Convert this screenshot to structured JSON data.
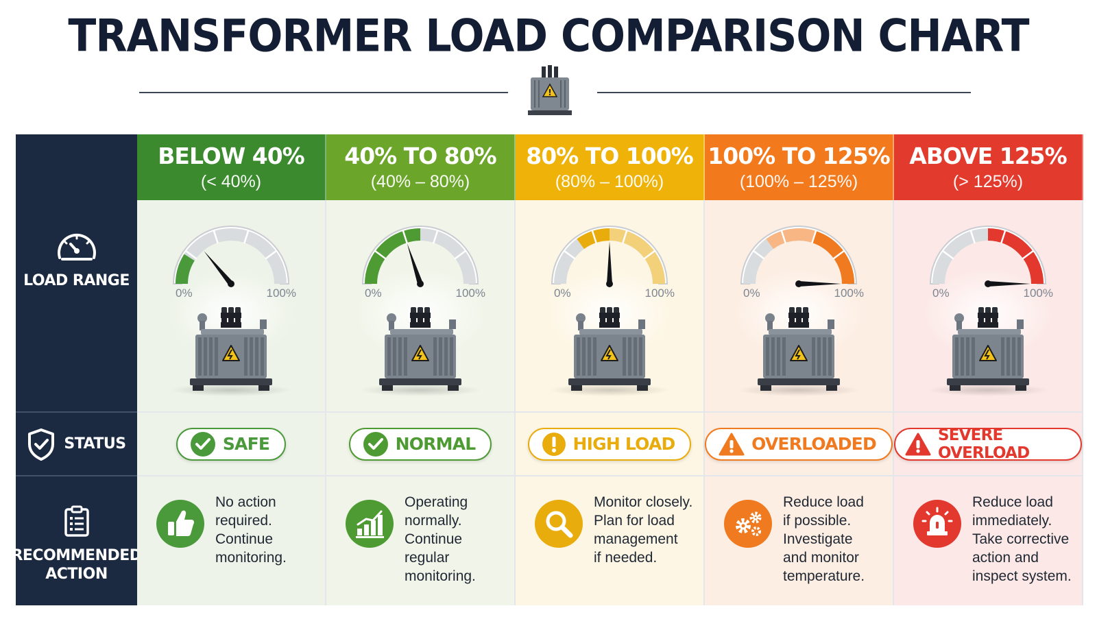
{
  "title": "TRANSFORMER LOAD COMPARISON CHART",
  "rows": {
    "load_range": "LOAD RANGE",
    "status": "STATUS",
    "recommended_action": [
      "RECOMMENDED",
      "ACTION"
    ]
  },
  "gauge_labels": {
    "min": "0%",
    "max": "100%"
  },
  "columns": [
    {
      "range": "BELOW 40%",
      "range_sub": "(< 40%)",
      "status": "SAFE",
      "status_icon": "check-icon",
      "action_icon": "thumbs-up-icon",
      "action": [
        "No action",
        "required.",
        "Continue",
        "monitoring."
      ],
      "needle_percent": 28,
      "colors": {
        "head": "#3b8a2e",
        "body": "#edf3e8",
        "accent": "#4a9a3c",
        "fill_from": 0,
        "fill_to": 18
      }
    },
    {
      "range": "40% TO 80%",
      "range_sub": "(40% – 80%)",
      "status": "NORMAL",
      "status_icon": "check-icon",
      "action_icon": "bar-chart-icon",
      "action": [
        "Operating",
        "normally.",
        "Continue",
        "regular",
        "monitoring."
      ],
      "needle_percent": 40,
      "colors": {
        "head": "#6ba62a",
        "body": "#f1f5e9",
        "accent": "#4e9a33",
        "fill_from": 0,
        "fill_to": 50
      }
    },
    {
      "range": "80% TO 100%",
      "range_sub": "(80% – 100%)",
      "status": "HIGH LOAD",
      "status_icon": "exclamation-icon",
      "action_icon": "magnifier-icon",
      "action": [
        "Monitor closely.",
        "Plan for load",
        "management",
        "if needed."
      ],
      "needle_percent": 50,
      "colors": {
        "head": "#eeb208",
        "body": "#fdf6e4",
        "accent": "#e9ac0d",
        "fill_from": 30,
        "fill_to": 70
      }
    },
    {
      "range": "100% TO 125%",
      "range_sub": "(100% – 125%)",
      "status": "OVERLOADED",
      "status_icon": "warning-icon",
      "action_icon": "gears-icon",
      "action": [
        "Reduce load",
        "if possible.",
        "Investigate",
        "and monitor",
        "temperature."
      ],
      "needle_percent": 100,
      "colors": {
        "head": "#f3791d",
        "body": "#fdeee3",
        "accent": "#f07a1f",
        "fill_from": 30,
        "fill_to": 100
      }
    },
    {
      "range": "ABOVE 125%",
      "range_sub": "(> 125%)",
      "status": "SEVERE OVERLOAD",
      "status_icon": "warning-icon",
      "action_icon": "alarm-light-icon",
      "action": [
        "Reduce load",
        "immediately.",
        "Take corrective",
        "action and",
        "inspect system."
      ],
      "needle_percent": 100,
      "colors": {
        "head": "#e33a2e",
        "body": "#fce9e7",
        "accent": "#e2382d",
        "fill_from": 50,
        "fill_to": 100
      }
    }
  ]
}
